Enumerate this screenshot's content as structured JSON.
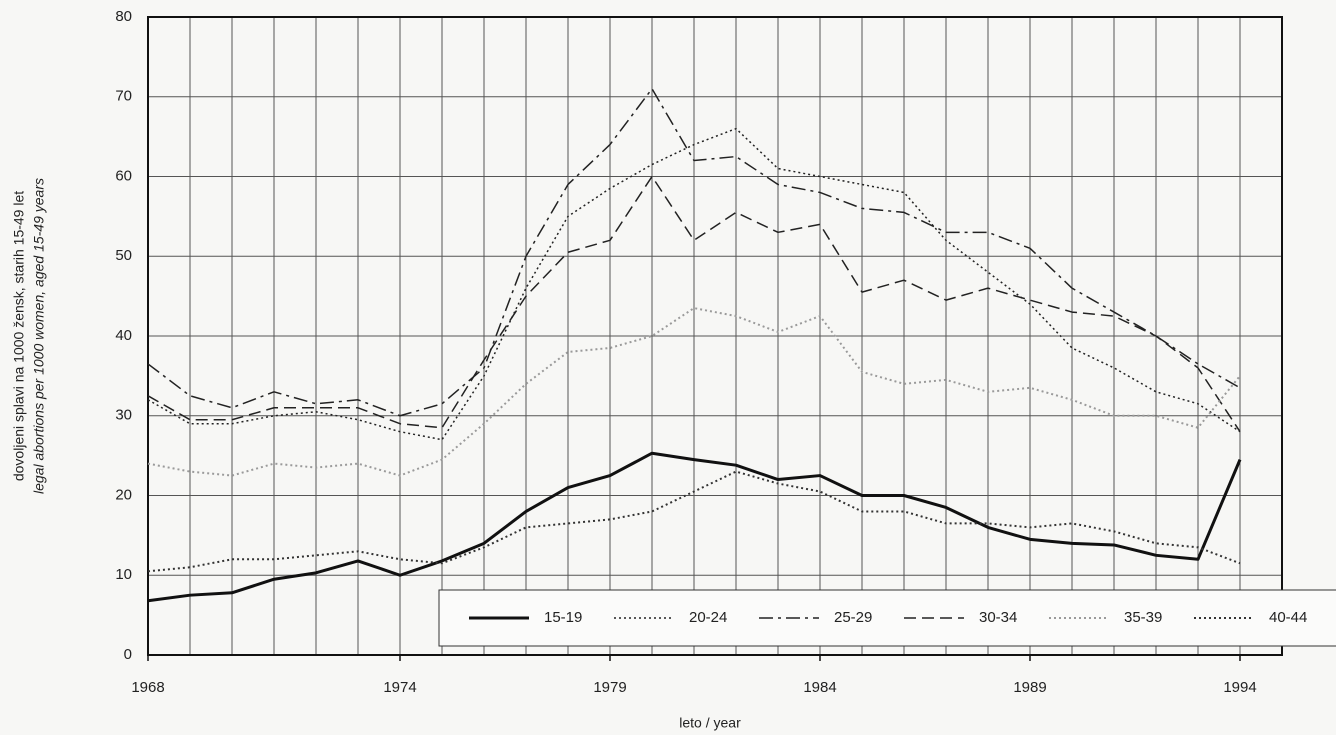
{
  "chart_data": {
    "type": "line",
    "y_label": "dovoljeni splavi na 1000 žensk, starih 15-49 let",
    "y_label_2": "legal abortions per 1000 women, aged 15-49 years",
    "x_label": "leto / year",
    "x": [
      1968,
      1969,
      1970,
      1971,
      1972,
      1973,
      1974,
      1975,
      1976,
      1977,
      1978,
      1979,
      1980,
      1981,
      1982,
      1983,
      1984,
      1985,
      1986,
      1987,
      1988,
      1989,
      1990,
      1991,
      1992,
      1993,
      1994
    ],
    "series": [
      {
        "name": "15-19",
        "color": "#111111",
        "style": "solid",
        "width": 3,
        "values": [
          6.8,
          7.5,
          7.8,
          9.5,
          10.3,
          11.8,
          10,
          11.8,
          14,
          18,
          21,
          22.5,
          25.3,
          24.5,
          23.8,
          22,
          22.5,
          20,
          20,
          18.5,
          16,
          14.5,
          14,
          13.8,
          12.5,
          12,
          24.5
        ]
      },
      {
        "name": "20-24",
        "color": "#222222",
        "style": "dotted",
        "width": 1.5,
        "values": [
          32,
          29,
          29,
          30,
          30.5,
          29.5,
          28,
          27,
          35,
          46,
          55,
          58.5,
          61.5,
          64,
          66,
          61,
          60,
          59,
          58,
          52,
          48,
          44,
          38.5,
          36,
          33,
          31.5,
          28
        ]
      },
      {
        "name": "25-29",
        "color": "#222222",
        "style": "dashdot",
        "width": 1.5,
        "values": [
          36.5,
          32.5,
          31,
          33,
          31.5,
          32,
          30,
          31.5,
          36,
          50,
          59,
          64,
          71,
          62,
          62.5,
          59,
          58,
          56,
          55.5,
          53,
          53,
          51,
          46,
          43,
          40,
          36.5,
          33.5
        ]
      },
      {
        "name": "30-34",
        "color": "#222222",
        "style": "dashed",
        "width": 1.5,
        "values": [
          32.5,
          29.5,
          29.5,
          31,
          31,
          31,
          29,
          28.5,
          37,
          45,
          50.5,
          52,
          60,
          52,
          55.5,
          53,
          54,
          45.5,
          47,
          44.5,
          46,
          44.5,
          43,
          42.5,
          40,
          36,
          28
        ]
      },
      {
        "name": "35-39",
        "color": "#9a9a9a",
        "style": "dotted",
        "width": 2,
        "values": [
          24,
          23,
          22.5,
          24,
          23.5,
          24,
          22.5,
          24.5,
          29,
          34,
          38,
          38.5,
          40,
          43.5,
          42.5,
          40.5,
          42.5,
          35.5,
          34,
          34.5,
          33,
          33.5,
          32,
          30,
          30,
          28.5,
          35
        ]
      },
      {
        "name": "40-44",
        "color": "#333333",
        "style": "dotted",
        "width": 2,
        "values": [
          10.5,
          11,
          12,
          12,
          12.5,
          13,
          12,
          11.5,
          13.5,
          16,
          16.5,
          17,
          18,
          20.5,
          23,
          21.5,
          20.5,
          18,
          18,
          16.5,
          16.5,
          16,
          16.5,
          15.5,
          14,
          13.5,
          11.5
        ]
      }
    ],
    "xlim": [
      1968,
      1995
    ],
    "xticks": [
      1968,
      1974,
      1979,
      1984,
      1989,
      1994
    ],
    "ylim": [
      0,
      80
    ],
    "yticks": [
      0,
      10,
      20,
      30,
      40,
      50,
      60,
      70,
      80
    ],
    "grid": true,
    "legend": "lower right"
  }
}
